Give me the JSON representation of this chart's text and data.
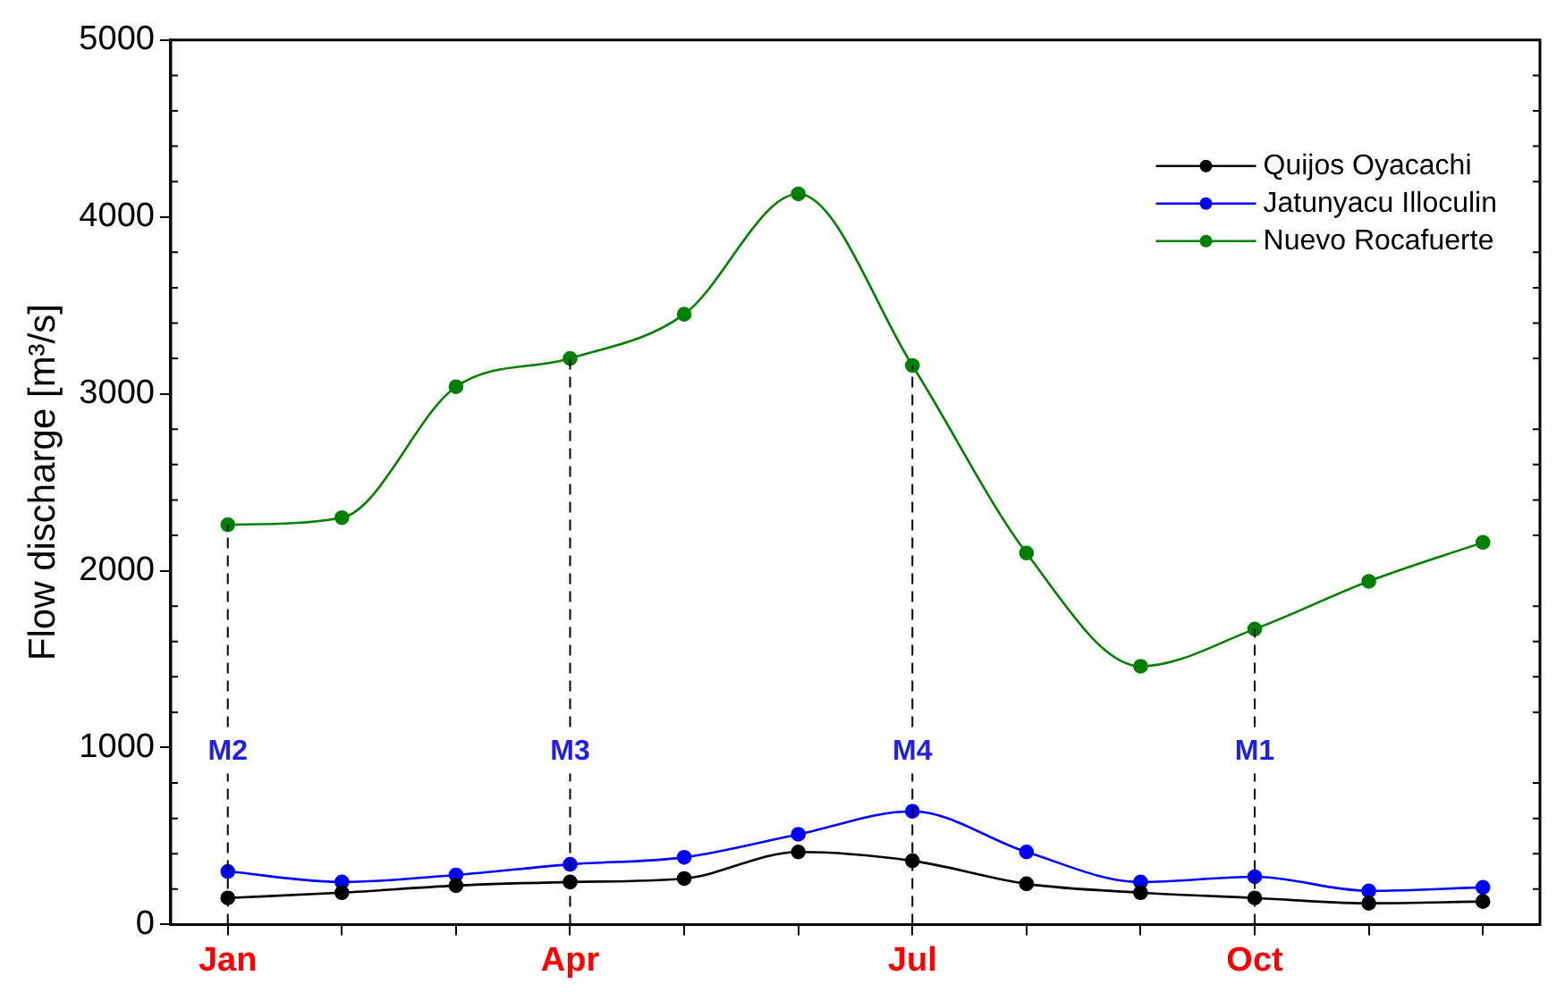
{
  "chart_data": {
    "type": "line",
    "ylabel": "Flow discharge [m³/s]",
    "categories": [
      "Jan",
      null,
      null,
      "Apr",
      null,
      null,
      "Jul",
      null,
      null,
      "Oct",
      null,
      null
    ],
    "ylim": [
      0,
      5000
    ],
    "yticks": [
      0,
      1000,
      2000,
      3000,
      4000,
      5000
    ],
    "series": [
      {
        "name": "Quijos Oyacachi",
        "color": "#000000",
        "values": [
          150,
          180,
          220,
          240,
          260,
          410,
          360,
          230,
          180,
          150,
          120,
          130
        ]
      },
      {
        "name": "Jatunyacu Illoculin",
        "color": "#0000ff",
        "values": [
          300,
          240,
          280,
          340,
          380,
          510,
          640,
          410,
          240,
          270,
          190,
          210
        ]
      },
      {
        "name": "Nuevo Rocafuerte",
        "color": "#008000",
        "values": [
          2260,
          2300,
          3040,
          3200,
          3450,
          4130,
          3160,
          2100,
          1460,
          1670,
          1940,
          2160
        ]
      }
    ],
    "ref_lines": [
      {
        "axis": "x",
        "value": "Jan",
        "label": "M2",
        "color": "#000000",
        "line_style": "dashed"
      },
      {
        "axis": "x",
        "value": "Apr",
        "label": "M3",
        "color": "#000000",
        "line_style": "dashed"
      },
      {
        "axis": "x",
        "value": "Jul",
        "label": "M4",
        "color": "#000000",
        "line_style": "dashed"
      },
      {
        "axis": "x",
        "value": "Oct",
        "label": "M1",
        "color": "#000000",
        "line_style": "dashed"
      }
    ],
    "legend": "top right",
    "grid": false,
    "marker": "circle",
    "line_style": "solid"
  }
}
